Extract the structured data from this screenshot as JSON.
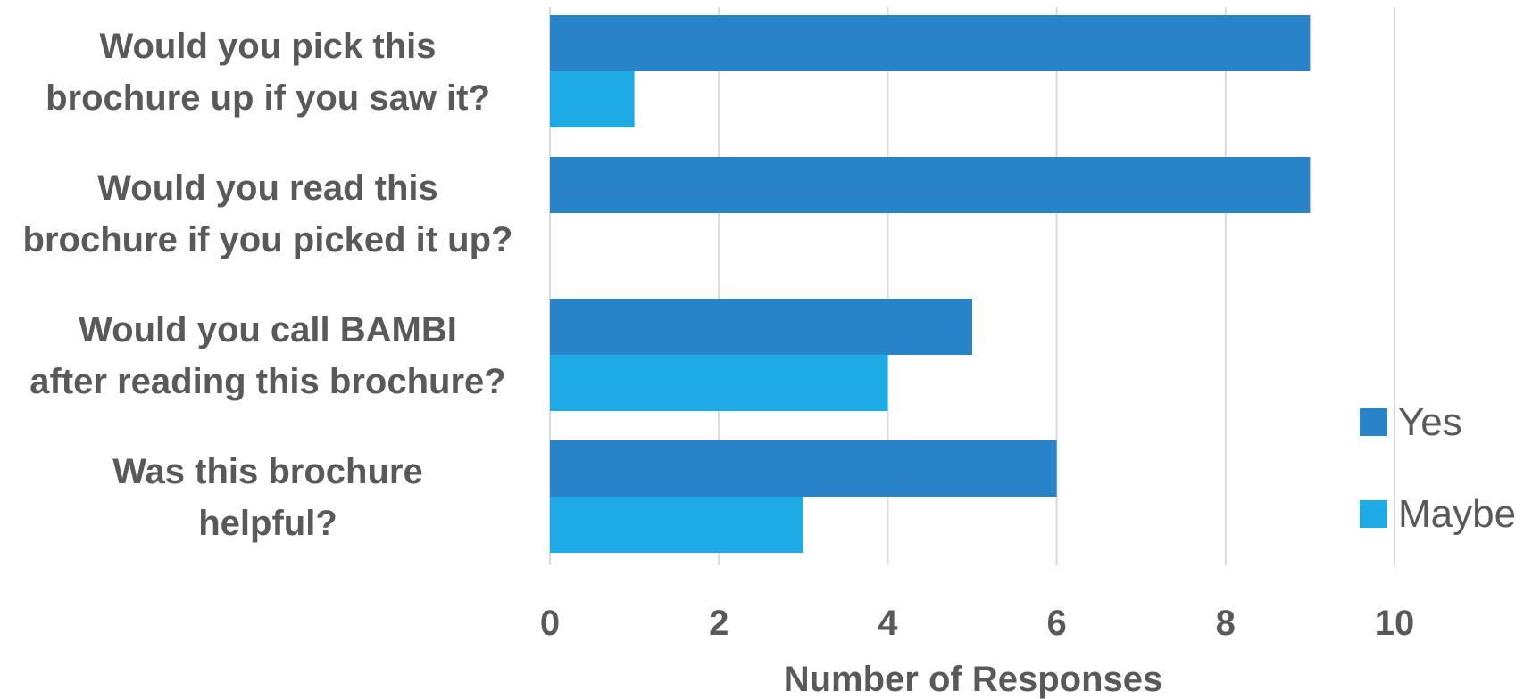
{
  "chart_data": {
    "type": "bar",
    "orientation": "horizontal",
    "categories": [
      "Would you pick this brochure up if you saw it?",
      "Would you read this brochure if you picked it up?",
      "Would you call BAMBI after reading this brochure?",
      "Was this brochure helpful?"
    ],
    "category_lines": [
      [
        "Would you pick this",
        "brochure up if you saw it?"
      ],
      [
        "Would you read this",
        "brochure if you picked it up?"
      ],
      [
        "Would you call BAMBI",
        "after reading this brochure?"
      ],
      [
        "Was this brochure",
        "helpful?"
      ]
    ],
    "series": [
      {
        "name": "Yes",
        "color": "#2883c8",
        "values": [
          9,
          9,
          5,
          6
        ]
      },
      {
        "name": "Maybe",
        "color": "#1eaae4",
        "values": [
          1,
          0,
          4,
          3
        ]
      }
    ],
    "title": "",
    "xlabel": "Number of Responses",
    "ylabel": "",
    "xlim": [
      0,
      10
    ],
    "xticks": [
      0,
      2,
      4,
      6,
      8,
      10
    ],
    "grid": true,
    "legend_position": "right"
  }
}
